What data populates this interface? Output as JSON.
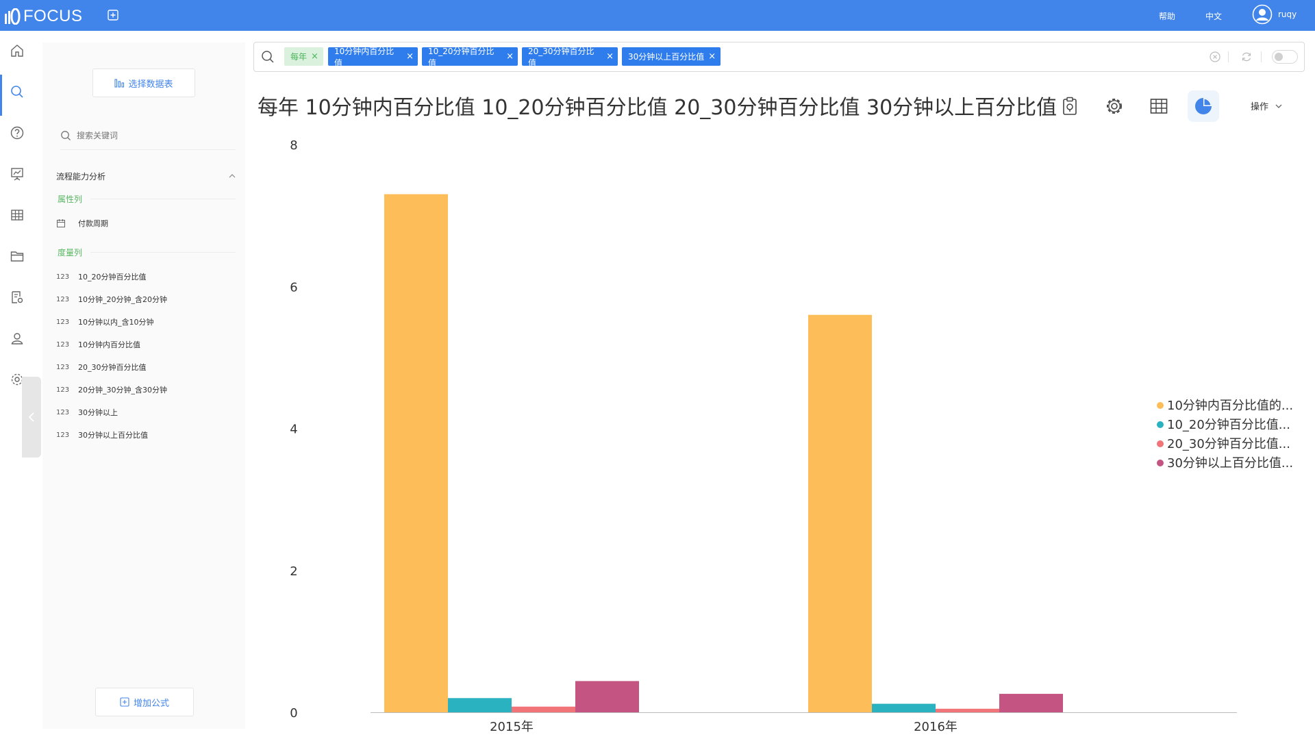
{
  "app": {
    "name": "FOCUS"
  },
  "header": {
    "help": "帮助",
    "language": "中文",
    "user": "ruqy"
  },
  "panel": {
    "select_source": "选择数据表",
    "search_placeholder": "搜索关键词",
    "group_title": "流程能力分析",
    "attr_label": "属性列",
    "attr_fields": [
      {
        "name": "付款周期"
      }
    ],
    "measure_label": "度量列",
    "measure_fields": [
      {
        "type": "123",
        "name": "10_20分钟百分比值"
      },
      {
        "type": "123",
        "name": "10分钟_20分钟_含20分钟"
      },
      {
        "type": "123",
        "name": "10分钟以内_含10分钟"
      },
      {
        "type": "123",
        "name": "10分钟内百分比值"
      },
      {
        "type": "123",
        "name": "20_30分钟百分比值"
      },
      {
        "type": "123",
        "name": "20分钟_30分钟_含30分钟"
      },
      {
        "type": "123",
        "name": "30分钟以上"
      },
      {
        "type": "123",
        "name": "30分钟以上百分比值"
      }
    ],
    "add_formula": "增加公式"
  },
  "search": {
    "tokens": [
      {
        "label": "每年",
        "kind": "time"
      },
      {
        "label": "10分钟内百分比值",
        "kind": "measure"
      },
      {
        "label": "10_20分钟百分比值",
        "kind": "measure"
      },
      {
        "label": "20_30分钟百分比值",
        "kind": "measure"
      },
      {
        "label": "30分钟以上百分比值",
        "kind": "measure"
      }
    ]
  },
  "title": "每年 10分钟内百分比值 10_20分钟百分比值 20_30分钟百分比值 30分钟以上百分比值",
  "toolbar": {
    "operations": "操作"
  },
  "chart_data": {
    "type": "bar",
    "categories": [
      "2015年",
      "2016年"
    ],
    "series": [
      {
        "name": "10分钟内百分比值的...",
        "color": "#fdbe5a",
        "values": [
          7.3,
          5.6
        ]
      },
      {
        "name": "10_20分钟百分比值...",
        "color": "#2bb2c0",
        "values": [
          0.2,
          0.12
        ]
      },
      {
        "name": "20_30分钟百分比值...",
        "color": "#f07478",
        "values": [
          0.08,
          0.05
        ]
      },
      {
        "name": "30分钟以上百分比值...",
        "color": "#c45482",
        "values": [
          0.44,
          0.26
        ]
      }
    ],
    "yticks": [
      0,
      2,
      4,
      6,
      8
    ],
    "ylim": [
      0,
      8
    ],
    "legend_position": "right"
  }
}
